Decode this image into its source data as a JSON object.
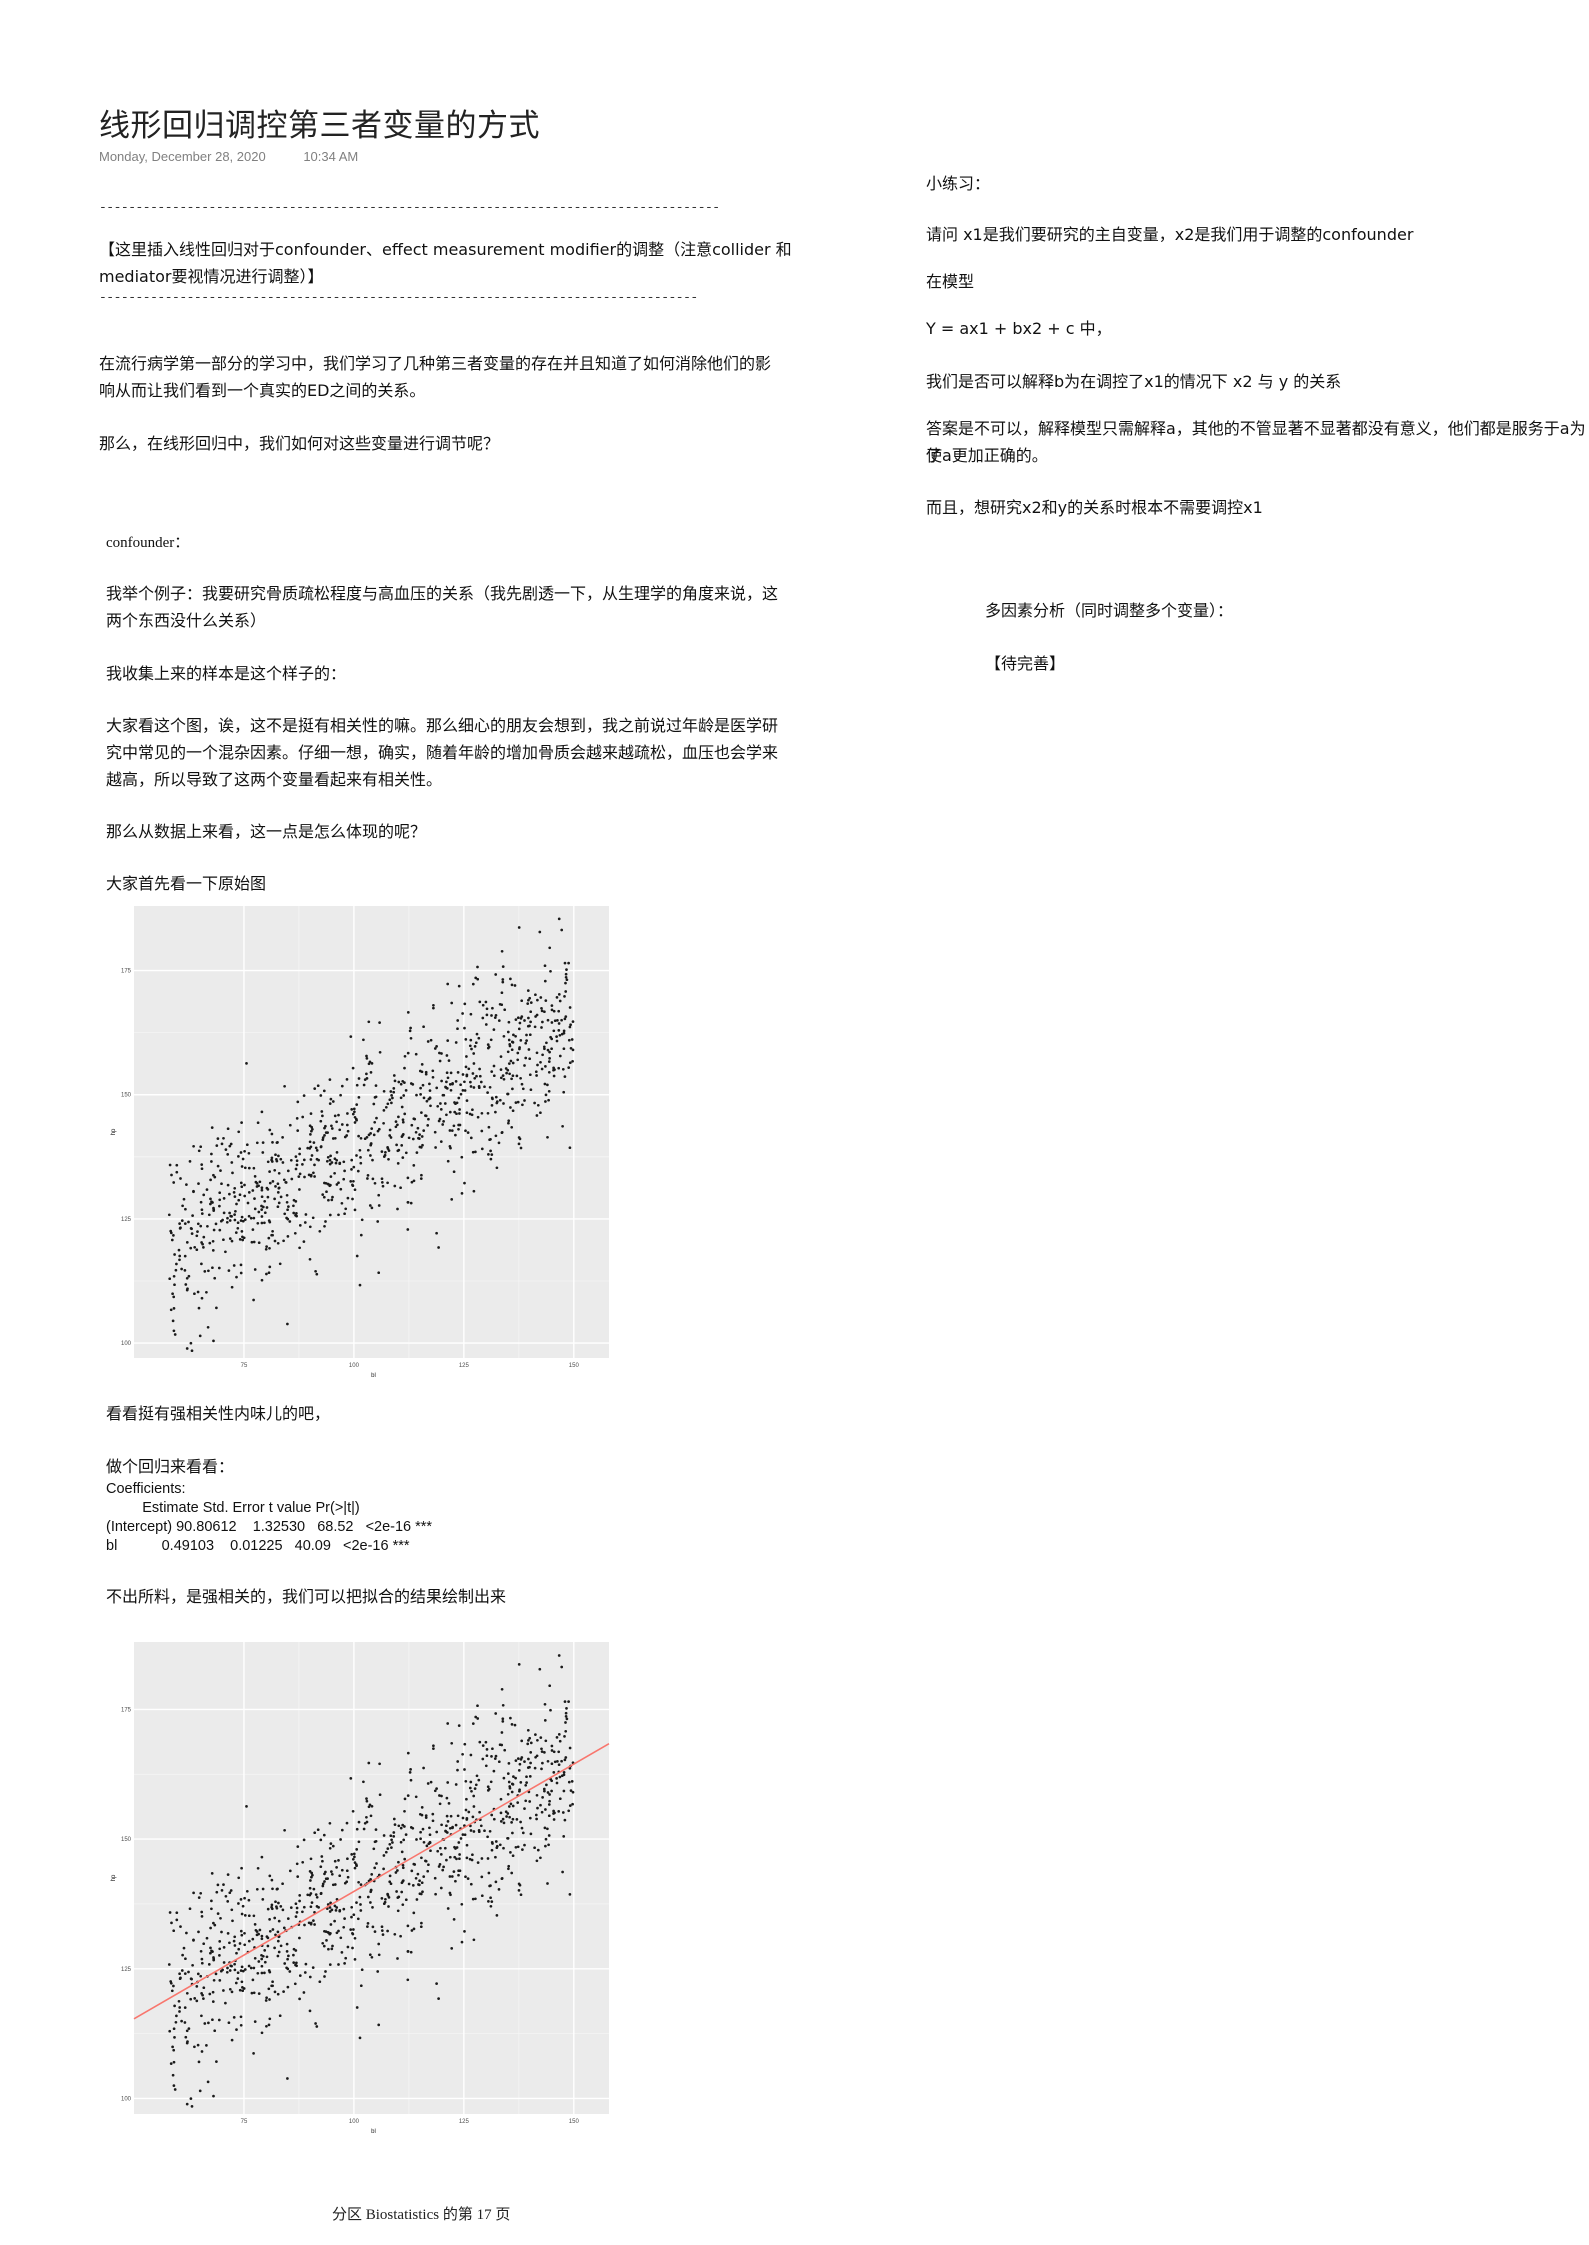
{
  "page": {
    "title": "线形回归调控第三者变量的方式",
    "date": "Monday, December 28, 2020",
    "time": "10:34 AM",
    "dash_line_1": "------------------------------------------------------------------------------------------------",
    "note_line_1": "【这里插入线性回归对于confounder、effect measurement modifier的调整（注意collider 和",
    "note_line_2": "mediator要视情况进行调整）】",
    "dash_line_2": "------------------------------------------------------------------------------------------------",
    "intro_line_1": "在流行病学第一部分的学习中，我们学习了几种第三者变量的存在并且知道了如何消除他们的影",
    "intro_line_2": "响从而让我们看到一个真实的ED之间的关系。",
    "question": "那么，在线形回归中，我们如何对这些变量进行调节呢？",
    "confounder_heading": "confounder：",
    "example_line_1": "我举个例子：我要研究骨质疏松程度与高血压的关系（我先剧透一下，从生理学的角度来说，这",
    "example_line_2": "两个东西没什么关系）",
    "sample_text": "我收集上来的样本是这个样子的：",
    "explain_line_1": "大家看这个图，诶，这不是挺有相关性的嘛。那么细心的朋友会想到，我之前说过年龄是医学研",
    "explain_line_2": "究中常见的一个混杂因素。仔细一想，确实，随着年龄的增加骨质会越来越疏松，血压也会学来",
    "explain_line_3": "越高，所以导致了这两个变量看起来有相关性。",
    "data_question": "那么从数据上来看，这一点是怎么体现的呢？",
    "original_plot_text": "大家首先看一下原始图",
    "strong_text": "看看挺有强相关性内味儿的吧，",
    "regress_text": "做个回归来看看：",
    "coef_title": "Coefficients:",
    "coef_header": "         Estimate Std. Error t value Pr(>|t|)",
    "coef_row_1": "(Intercept) 90.80612    1.32530   68.52   <2e-16 ***",
    "coef_row_2": "bl           0.49103    0.01225   40.09   <2e-16 ***",
    "fit_text": "不出所料，是强相关的，我们可以把拟合的结果绘制出来",
    "footer": "分区 Biostatistics 的第 17 页"
  },
  "right": {
    "exercise": "小练习：",
    "q_line": "请问 x1是我们要研究的主自变量，x2是我们用于调整的confounder",
    "in_model": "在模型",
    "model": "Y = ax1 + bx2 + c 中，",
    "ask": "我们是否可以解释b为在调控了x1的情况下 x2 与 y 的关系",
    "answer_1": "答案是不可以，解释模型只需解释a，其他的不管显著不显著都没有意义，他们都是服务于a为了",
    "answer_2": "使a更加正确的。",
    "also": "而且，想研究x2和y的关系时根本不需要调控x1",
    "multi": "多因素分析（同时调整多个变量）：",
    "todo": "【待完善】"
  },
  "chart_data": [
    {
      "type": "scatter",
      "xlabel": "bl",
      "ylabel": "hp",
      "x_ticks": [
        75,
        100,
        125,
        150
      ],
      "y_ticks": [
        100,
        125,
        150,
        175
      ],
      "xlim": [
        50,
        158
      ],
      "ylim": [
        97,
        188
      ],
      "grid": true,
      "n_points": 1000,
      "trend": {
        "intercept": 90.80612,
        "slope": 0.49103
      },
      "fit_line": false
    },
    {
      "type": "scatter",
      "xlabel": "bl",
      "ylabel": "hp",
      "x_ticks": [
        75,
        100,
        125,
        150
      ],
      "y_ticks": [
        100,
        125,
        150,
        175
      ],
      "xlim": [
        50,
        158
      ],
      "ylim": [
        97,
        188
      ],
      "grid": true,
      "n_points": 1000,
      "trend": {
        "intercept": 90.80612,
        "slope": 0.49103
      },
      "fit_line": true,
      "fit_color": "#f8766d"
    }
  ]
}
